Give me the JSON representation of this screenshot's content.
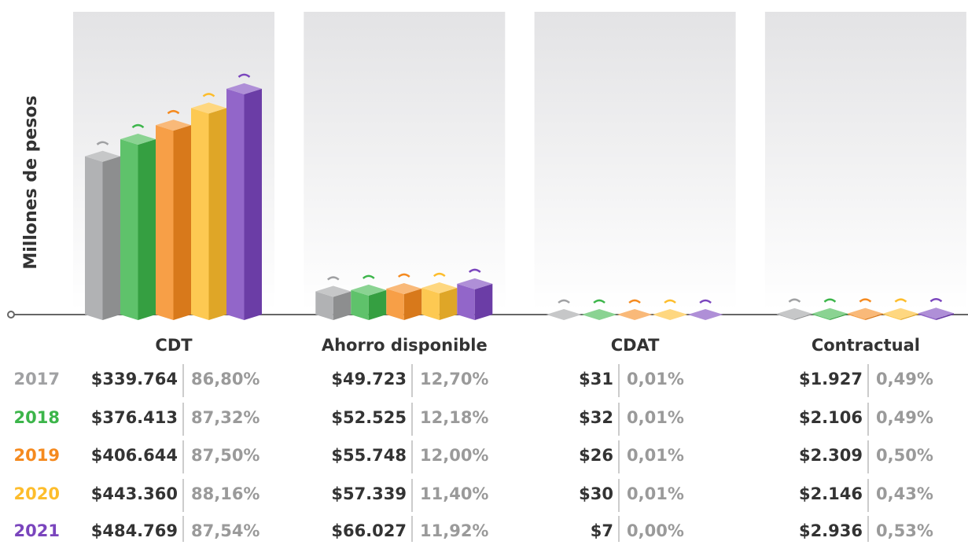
{
  "chart_data": {
    "type": "bar3d",
    "ylabel": "Millones de pesos",
    "categories": [
      "CDT",
      "Ahorro disponible",
      "CDAT",
      "Contractual"
    ],
    "ylim": [
      0,
      650000
    ],
    "series": [
      {
        "name": "2017",
        "color": "#a0a1a3",
        "values": [
          339764,
          49723,
          31,
          1927
        ],
        "value_labels": [
          "$339.764",
          "$49.723",
          "$31",
          "$1.927"
        ],
        "shares": [
          86.8,
          12.7,
          0.01,
          0.49
        ],
        "share_labels": [
          "86,80%",
          "12,70%",
          "0,01%",
          "0,49%"
        ]
      },
      {
        "name": "2018",
        "color": "#3cb54a",
        "values": [
          376413,
          52525,
          32,
          2106
        ],
        "value_labels": [
          "$376.413",
          "$52.525",
          "$32",
          "$2.106"
        ],
        "shares": [
          87.32,
          12.18,
          0.01,
          0.49
        ],
        "share_labels": [
          "87,32%",
          "12,18%",
          "0,01%",
          "0,49%"
        ]
      },
      {
        "name": "2019",
        "color": "#f58a1f",
        "values": [
          406644,
          55748,
          26,
          2309
        ],
        "value_labels": [
          "$406.644",
          "$55.748",
          "$26",
          "$2.309"
        ],
        "shares": [
          87.5,
          12.0,
          0.01,
          0.5
        ],
        "share_labels": [
          "87,50%",
          "12,00%",
          "0,01%",
          "0,50%"
        ]
      },
      {
        "name": "2020",
        "color": "#fdbd2c",
        "values": [
          443360,
          57339,
          30,
          2146
        ],
        "value_labels": [
          "$443.360",
          "$57.339",
          "$30",
          "$2.146"
        ],
        "shares": [
          88.16,
          11.4,
          0.01,
          0.43
        ],
        "share_labels": [
          "88,16%",
          "11,40%",
          "0,01%",
          "0,43%"
        ]
      },
      {
        "name": "2021",
        "color": "#7a45bd",
        "values": [
          484769,
          66027,
          7,
          2936
        ],
        "value_labels": [
          "$484.769",
          "$66.027",
          "$7",
          "$2.936"
        ],
        "shares": [
          87.54,
          11.92,
          0.0,
          0.53
        ],
        "share_labels": [
          "87,54%",
          "11,92%",
          "0,00%",
          "0,53%"
        ]
      }
    ]
  }
}
